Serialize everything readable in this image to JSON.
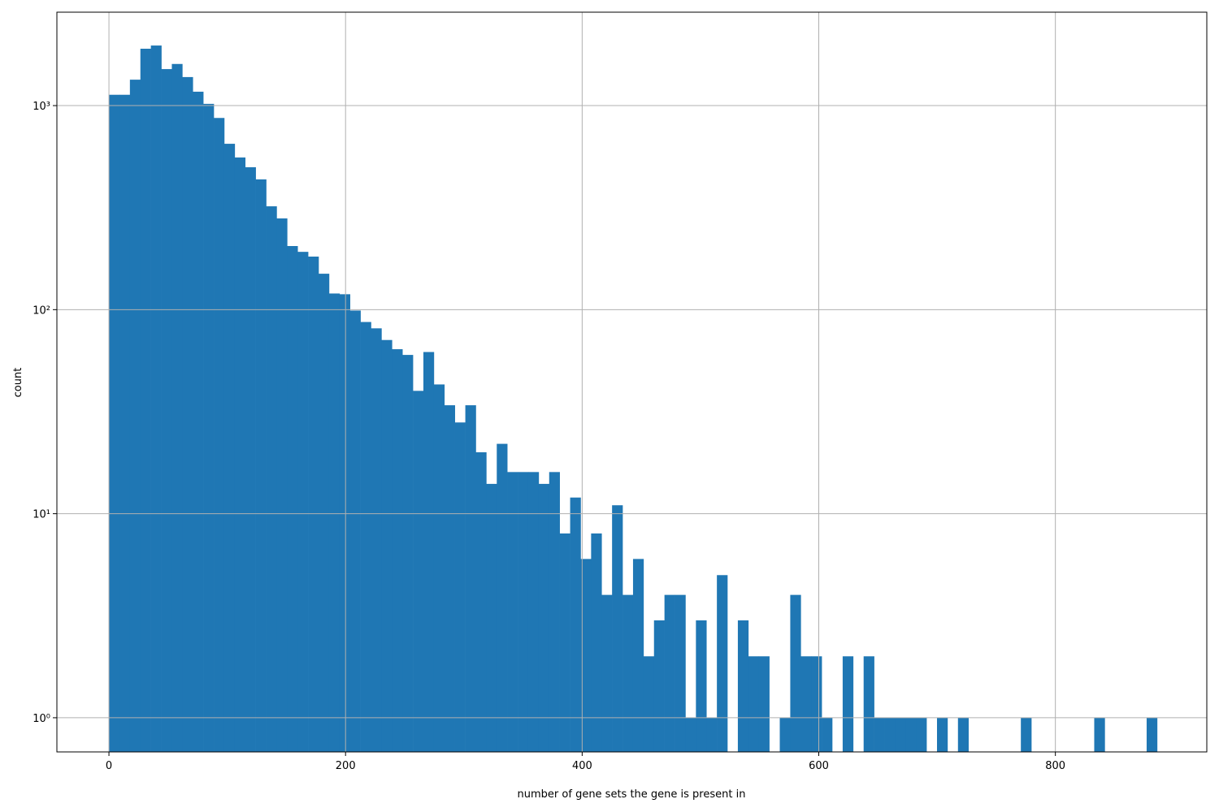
{
  "chart_data": {
    "type": "histogram",
    "xlabel": "number of gene sets the gene is present in",
    "ylabel": "count",
    "color": "#1f77b4",
    "log_y": true,
    "grid": true,
    "bins": [
      0,
      8.86,
      17.72,
      26.58,
      35.44,
      44.3,
      53.16,
      62.02,
      70.88,
      79.74,
      88.6,
      97.46,
      106.32,
      115.18,
      124.04,
      132.9,
      141.76,
      150.62,
      159.48,
      168.34,
      177.2,
      186.06,
      194.92,
      203.78,
      212.64,
      221.5,
      230.36,
      239.22,
      248.08,
      256.94,
      265.8,
      274.66,
      283.52,
      292.38,
      301.24,
      310.1,
      318.96,
      327.82,
      336.68,
      345.54,
      354.4,
      363.26,
      372.12,
      380.98,
      389.84,
      398.7,
      407.56,
      416.42,
      425.28,
      434.14,
      443,
      451.86,
      460.72,
      469.58,
      478.44,
      487.3,
      496.16,
      505.02,
      513.88,
      522.74,
      531.6,
      540.46,
      549.32,
      558.18,
      567.04,
      575.9,
      584.76,
      593.62,
      602.48,
      611.34,
      620.2,
      629.06,
      637.92,
      646.78,
      655.64,
      664.5,
      673.36,
      682.22,
      691.08,
      699.94,
      708.8,
      717.66,
      726.52,
      735.38,
      744.24,
      753.1,
      761.96,
      770.82,
      779.68,
      788.54,
      797.4,
      806.26,
      815.12,
      823.98,
      832.84,
      841.7,
      850.56,
      859.42,
      868.28,
      877.14,
      886
    ],
    "values": [
      1130,
      1130,
      1340,
      1900,
      1970,
      1510,
      1600,
      1380,
      1170,
      1020,
      870,
      650,
      557,
      499,
      435,
      321,
      280,
      205,
      192,
      182,
      150,
      120,
      119,
      99,
      87,
      81,
      71,
      64,
      60,
      40,
      62,
      43,
      34,
      28,
      34,
      20,
      14,
      22,
      16,
      16,
      16,
      14,
      16,
      8,
      12,
      6,
      8,
      4,
      11,
      4,
      6,
      2,
      3,
      4,
      4,
      1,
      3,
      1,
      5,
      0,
      3,
      2,
      2,
      0,
      1,
      4,
      2,
      2,
      1,
      0,
      2,
      0,
      2,
      1,
      1,
      1,
      1,
      1,
      0,
      1,
      0,
      1,
      0,
      0,
      0,
      0,
      0,
      1,
      0,
      0,
      0,
      0,
      0,
      0,
      1,
      0,
      0,
      0,
      0,
      1
    ],
    "xlim": [
      -44,
      928
    ],
    "ylim": [
      0.68,
      2870
    ],
    "xticks": [
      0,
      200,
      400,
      600,
      800
    ],
    "yticks": [
      {
        "value": 1,
        "label": "10⁰"
      },
      {
        "value": 10,
        "label": "10¹"
      },
      {
        "value": 100,
        "label": "10²"
      },
      {
        "value": 1000,
        "label": "10³"
      }
    ]
  }
}
